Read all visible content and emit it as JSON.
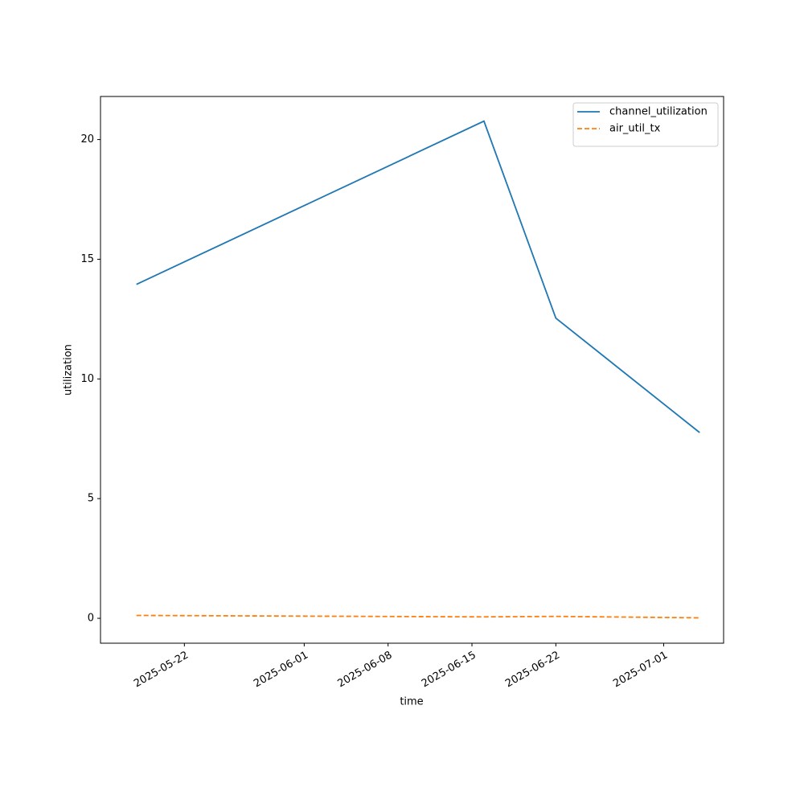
{
  "chart_data": {
    "type": "line",
    "xlabel": "time",
    "ylabel": "utilization",
    "x": [
      "2025-05-18",
      "2025-06-16",
      "2025-06-22",
      "2025-07-04"
    ],
    "series": [
      {
        "name": "channel_utilization",
        "color": "#1f77b4",
        "linestyle": "solid",
        "values": [
          13.95,
          20.77,
          12.54,
          7.76
        ]
      },
      {
        "name": "air_util_tx",
        "color": "#ff7f0e",
        "linestyle": "dashed",
        "values": [
          0.12,
          0.06,
          0.08,
          0.02
        ]
      }
    ],
    "xlim": [
      "2025-05-15",
      "2025-07-06"
    ],
    "xticks": [
      "2025-05-22",
      "2025-06-01",
      "2025-06-08",
      "2025-06-15",
      "2025-06-22",
      "2025-07-01"
    ],
    "ylim": [
      -1.04,
      21.8
    ],
    "yticks": [
      0,
      5,
      10,
      15,
      20
    ],
    "grid": false,
    "legend": "upper right"
  }
}
